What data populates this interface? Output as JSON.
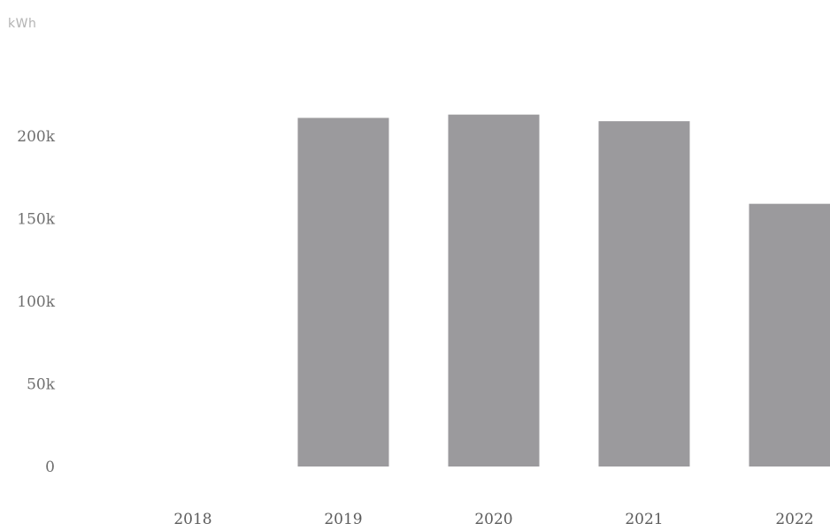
{
  "chart_data": {
    "type": "bar",
    "unit": "kWh",
    "categories": [
      "2018",
      "2019",
      "2020",
      "2021",
      "2022"
    ],
    "values": [
      0,
      211000,
      213000,
      209000,
      159000
    ],
    "ylim": [
      0,
      215000
    ],
    "yticks": [
      0,
      50000,
      100000,
      150000,
      200000
    ],
    "ytick_labels": [
      "0",
      "50k",
      "100k",
      "150k",
      "200k"
    ],
    "grid": false,
    "legend": "none",
    "colors": {
      "bar": "#9b9a9d",
      "tick_text": "#6e6e6e",
      "unit_text": "#b3b3b3"
    }
  }
}
